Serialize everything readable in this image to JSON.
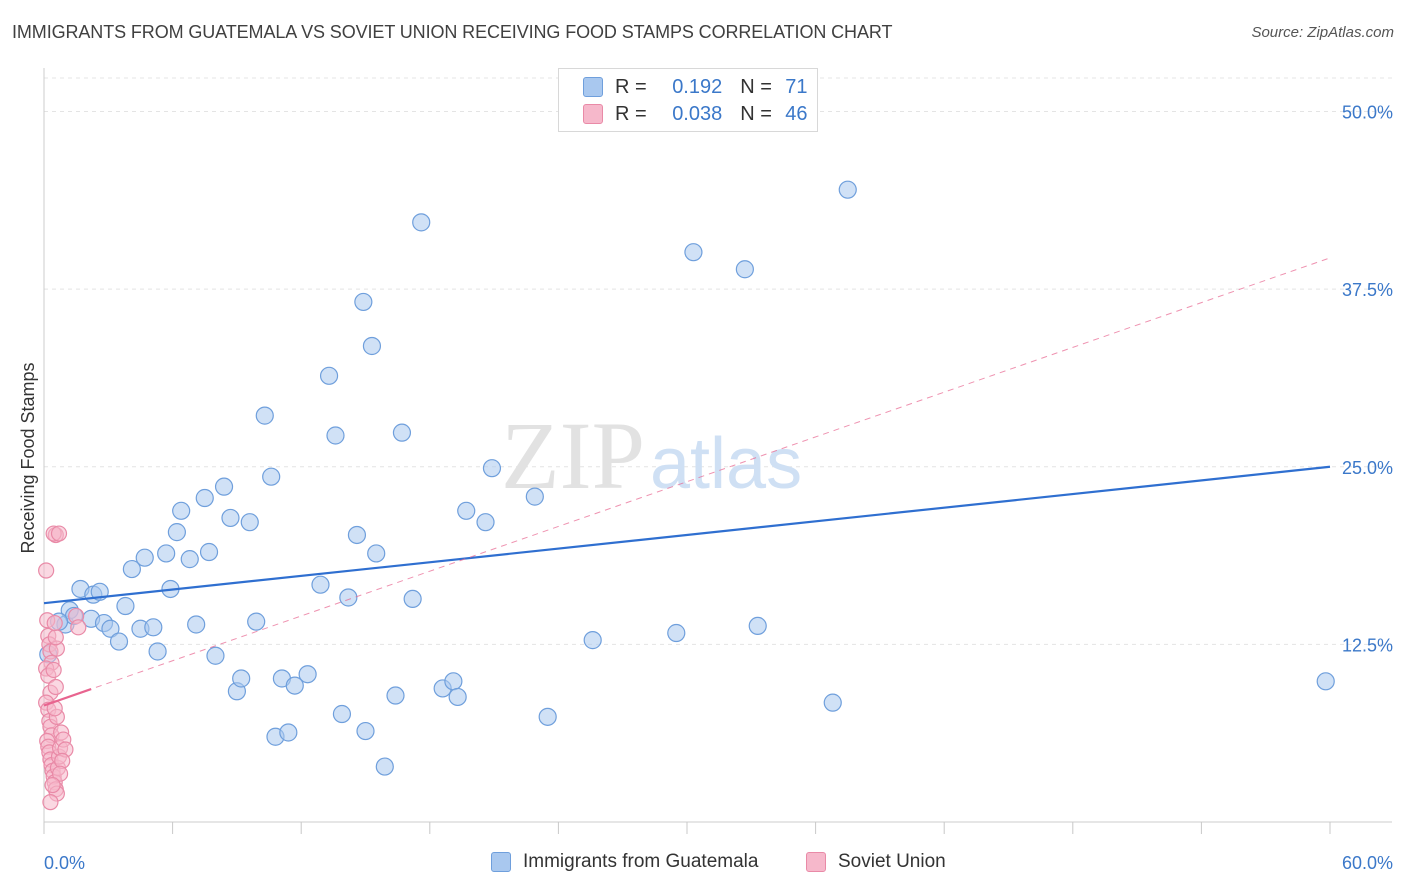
{
  "title": "IMMIGRANTS FROM GUATEMALA VS SOVIET UNION RECEIVING FOOD STAMPS CORRELATION CHART",
  "source": "Source: ZipAtlas.com",
  "watermark": {
    "zip": "ZIP",
    "atlas": "atlas"
  },
  "legend": {
    "r_label": "R =",
    "n_label": "N =",
    "rows": [
      {
        "r": "0.192",
        "n": "71"
      },
      {
        "r": "0.038",
        "n": "46"
      }
    ]
  },
  "colors": {
    "blue_fill": "#a9c8ef",
    "blue_stroke": "#6f9fdc",
    "blue_line": "#2f6fd0",
    "pink_fill": "#f6b8cb",
    "pink_stroke": "#e98aa7",
    "pink_line": "#e8648f",
    "axis_label": "#3b78c9"
  },
  "chart_data": {
    "type": "scatter",
    "title": "IMMIGRANTS FROM GUATEMALA VS SOVIET UNION RECEIVING FOOD STAMPS CORRELATION CHART",
    "xlabel": "",
    "ylabel": "Receiving Food Stamps",
    "xlim": [
      0,
      60
    ],
    "ylim": [
      0,
      52.5
    ],
    "x_tick_labels": [
      "0.0%",
      "60.0%"
    ],
    "y_ticks": [
      12.5,
      25.0,
      37.5,
      50.0
    ],
    "y_tick_labels": [
      "12.5%",
      "25.0%",
      "37.5%",
      "50.0%"
    ],
    "grid": true,
    "legend_position": "top-center",
    "series": [
      {
        "name": "Immigrants from Guatemala",
        "color": "#a9c8ef",
        "trend": {
          "x": [
            0,
            60
          ],
          "y": [
            15.4,
            25.0
          ],
          "style": "solid"
        },
        "points": [
          [
            1.0,
            13.9
          ],
          [
            1.2,
            14.9
          ],
          [
            1.4,
            14.5
          ],
          [
            1.7,
            16.4
          ],
          [
            2.3,
            16.0
          ],
          [
            2.6,
            16.2
          ],
          [
            2.2,
            14.3
          ],
          [
            2.8,
            14.0
          ],
          [
            3.1,
            13.6
          ],
          [
            3.5,
            12.7
          ],
          [
            3.8,
            15.2
          ],
          [
            4.1,
            17.8
          ],
          [
            4.5,
            13.6
          ],
          [
            4.7,
            18.6
          ],
          [
            5.1,
            13.7
          ],
          [
            5.3,
            12.0
          ],
          [
            5.7,
            18.9
          ],
          [
            5.9,
            16.4
          ],
          [
            6.2,
            20.4
          ],
          [
            6.4,
            21.9
          ],
          [
            6.8,
            18.5
          ],
          [
            7.1,
            13.9
          ],
          [
            7.5,
            22.8
          ],
          [
            7.7,
            19.0
          ],
          [
            8.0,
            11.7
          ],
          [
            8.4,
            23.6
          ],
          [
            8.7,
            21.4
          ],
          [
            9.0,
            9.2
          ],
          [
            9.2,
            10.1
          ],
          [
            9.6,
            21.1
          ],
          [
            9.9,
            14.1
          ],
          [
            10.3,
            28.6
          ],
          [
            10.6,
            24.3
          ],
          [
            10.8,
            6.0
          ],
          [
            11.1,
            10.1
          ],
          [
            11.4,
            6.3
          ],
          [
            11.7,
            9.6
          ],
          [
            12.3,
            10.4
          ],
          [
            12.9,
            16.7
          ],
          [
            13.3,
            31.4
          ],
          [
            13.6,
            27.2
          ],
          [
            13.9,
            7.6
          ],
          [
            14.2,
            15.8
          ],
          [
            14.6,
            20.2
          ],
          [
            15.0,
            6.4
          ],
          [
            14.9,
            36.6
          ],
          [
            15.3,
            33.5
          ],
          [
            15.5,
            18.9
          ],
          [
            15.9,
            3.9
          ],
          [
            16.4,
            8.9
          ],
          [
            16.7,
            27.4
          ],
          [
            17.2,
            15.7
          ],
          [
            17.6,
            42.2
          ],
          [
            18.6,
            9.4
          ],
          [
            19.1,
            9.9
          ],
          [
            19.3,
            8.8
          ],
          [
            19.7,
            21.9
          ],
          [
            20.6,
            21.1
          ],
          [
            20.9,
            24.9
          ],
          [
            22.9,
            22.9
          ],
          [
            23.5,
            7.4
          ],
          [
            25.6,
            12.8
          ],
          [
            29.5,
            13.3
          ],
          [
            30.3,
            40.1
          ],
          [
            32.7,
            38.9
          ],
          [
            33.3,
            13.8
          ],
          [
            36.8,
            8.4
          ],
          [
            37.5,
            44.5
          ],
          [
            59.8,
            9.9
          ],
          [
            0.2,
            11.8
          ],
          [
            0.7,
            14.1
          ]
        ]
      },
      {
        "name": "Soviet Union",
        "color": "#f6b8cb",
        "trend": {
          "x": [
            0,
            60
          ],
          "y": [
            8.2,
            39.7
          ],
          "style": "dashed",
          "solid_until_x": 2.2
        },
        "points": [
          [
            0.1,
            17.7
          ],
          [
            0.15,
            14.2
          ],
          [
            0.2,
            13.1
          ],
          [
            0.25,
            12.5
          ],
          [
            0.3,
            12.0
          ],
          [
            0.35,
            11.2
          ],
          [
            0.1,
            10.8
          ],
          [
            0.2,
            10.3
          ],
          [
            0.3,
            9.1
          ],
          [
            0.1,
            8.4
          ],
          [
            0.2,
            7.9
          ],
          [
            0.25,
            7.1
          ],
          [
            0.3,
            6.7
          ],
          [
            0.35,
            6.1
          ],
          [
            0.15,
            5.7
          ],
          [
            0.2,
            5.3
          ],
          [
            0.25,
            4.9
          ],
          [
            0.3,
            4.4
          ],
          [
            0.35,
            4.0
          ],
          [
            0.4,
            3.6
          ],
          [
            0.45,
            3.2
          ],
          [
            0.5,
            2.8
          ],
          [
            0.55,
            2.3
          ],
          [
            0.6,
            2.0
          ],
          [
            0.65,
            3.8
          ],
          [
            0.7,
            4.6
          ],
          [
            0.75,
            5.2
          ],
          [
            0.8,
            6.3
          ],
          [
            0.6,
            7.4
          ],
          [
            0.5,
            8.0
          ],
          [
            0.55,
            9.5
          ],
          [
            0.45,
            10.7
          ],
          [
            0.6,
            12.2
          ],
          [
            0.55,
            13.0
          ],
          [
            0.5,
            14.0
          ],
          [
            0.55,
            20.2
          ],
          [
            0.45,
            20.3
          ],
          [
            0.7,
            20.3
          ],
          [
            0.9,
            5.8
          ],
          [
            1.0,
            5.1
          ],
          [
            0.85,
            4.3
          ],
          [
            0.75,
            3.4
          ],
          [
            1.5,
            14.5
          ],
          [
            1.6,
            13.7
          ],
          [
            0.3,
            1.4
          ],
          [
            0.4,
            2.6
          ]
        ]
      }
    ]
  }
}
